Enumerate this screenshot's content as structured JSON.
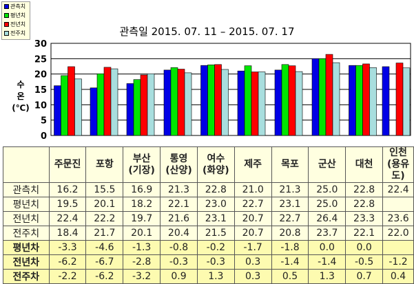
{
  "legend": [
    {
      "label": "관측치",
      "color": "#0000e6"
    },
    {
      "label": "평년치",
      "color": "#00e600"
    },
    {
      "label": "전년치",
      "color": "#ff0000"
    },
    {
      "label": "전주치",
      "color": "#a8dede"
    }
  ],
  "chart_data": {
    "type": "bar",
    "title": "관측일 2015. 07. 11 – 2015. 07. 17",
    "ylabel": [
      "수",
      "온",
      "(℃)"
    ],
    "ylim": [
      0,
      30
    ],
    "yticks": [
      0,
      5,
      10,
      15,
      20,
      25,
      30
    ],
    "grid": true,
    "legend_position": "top-left",
    "categories": [
      "주문진",
      "포항",
      "부산(기장)",
      "통영(산양)",
      "여수(화양)",
      "제주",
      "목포",
      "군산",
      "대천",
      "인천(용유도)"
    ],
    "series": [
      {
        "name": "관측치",
        "values": [
          16.2,
          15.5,
          16.9,
          21.3,
          22.8,
          21.0,
          21.3,
          25.0,
          22.8,
          22.4
        ]
      },
      {
        "name": "평년치",
        "values": [
          19.5,
          20.1,
          18.2,
          22.1,
          23.0,
          22.7,
          23.1,
          25.0,
          22.8,
          null
        ]
      },
      {
        "name": "전년치",
        "values": [
          22.4,
          22.2,
          19.7,
          21.6,
          23.1,
          20.7,
          22.7,
          26.4,
          23.3,
          23.6
        ]
      },
      {
        "name": "전주치",
        "values": [
          18.4,
          21.7,
          20.1,
          20.4,
          21.5,
          20.7,
          20.8,
          23.7,
          22.1,
          22.0
        ]
      }
    ]
  },
  "table": {
    "headers": [
      [
        "주문진"
      ],
      [
        "포항"
      ],
      [
        "부산",
        "(기장)"
      ],
      [
        "통영",
        "(산양)"
      ],
      [
        "여수",
        "(화양)"
      ],
      [
        "제주"
      ],
      [
        "목포"
      ],
      [
        "군산"
      ],
      [
        "대천"
      ],
      [
        "인천",
        "(용유도)"
      ]
    ],
    "rows": [
      {
        "label": "관측치",
        "values": [
          "16.2",
          "15.5",
          "16.9",
          "21.3",
          "22.8",
          "21.0",
          "21.3",
          "25.0",
          "22.8",
          "22.4"
        ]
      },
      {
        "label": "평년치",
        "values": [
          "19.5",
          "20.1",
          "18.2",
          "22.1",
          "23.0",
          "22.7",
          "23.1",
          "25.0",
          "22.8",
          ""
        ]
      },
      {
        "label": "전년치",
        "values": [
          "22.4",
          "22.2",
          "19.7",
          "21.6",
          "23.1",
          "20.7",
          "22.7",
          "26.4",
          "23.3",
          "23.6"
        ]
      },
      {
        "label": "전주치",
        "values": [
          "18.4",
          "21.7",
          "20.1",
          "20.4",
          "21.5",
          "20.7",
          "20.8",
          "23.7",
          "22.1",
          "22.0"
        ]
      },
      {
        "label": "평년차",
        "diff": true,
        "values": [
          "-3.3",
          "-4.6",
          "-1.3",
          "-0.8",
          "-0.2",
          "-1.7",
          "-1.8",
          "0.0",
          "0.0",
          ""
        ]
      },
      {
        "label": "전년차",
        "diff": true,
        "values": [
          "-6.2",
          "-6.7",
          "-2.8",
          "-0.3",
          "-0.3",
          "0.3",
          "-1.4",
          "-1.4",
          "-0.5",
          "-1.2"
        ]
      },
      {
        "label": "전주차",
        "diff": true,
        "values": [
          "-2.2",
          "-6.2",
          "-3.2",
          "0.9",
          "1.3",
          "0.3",
          "0.5",
          "1.3",
          "0.7",
          "0.4"
        ]
      }
    ]
  }
}
